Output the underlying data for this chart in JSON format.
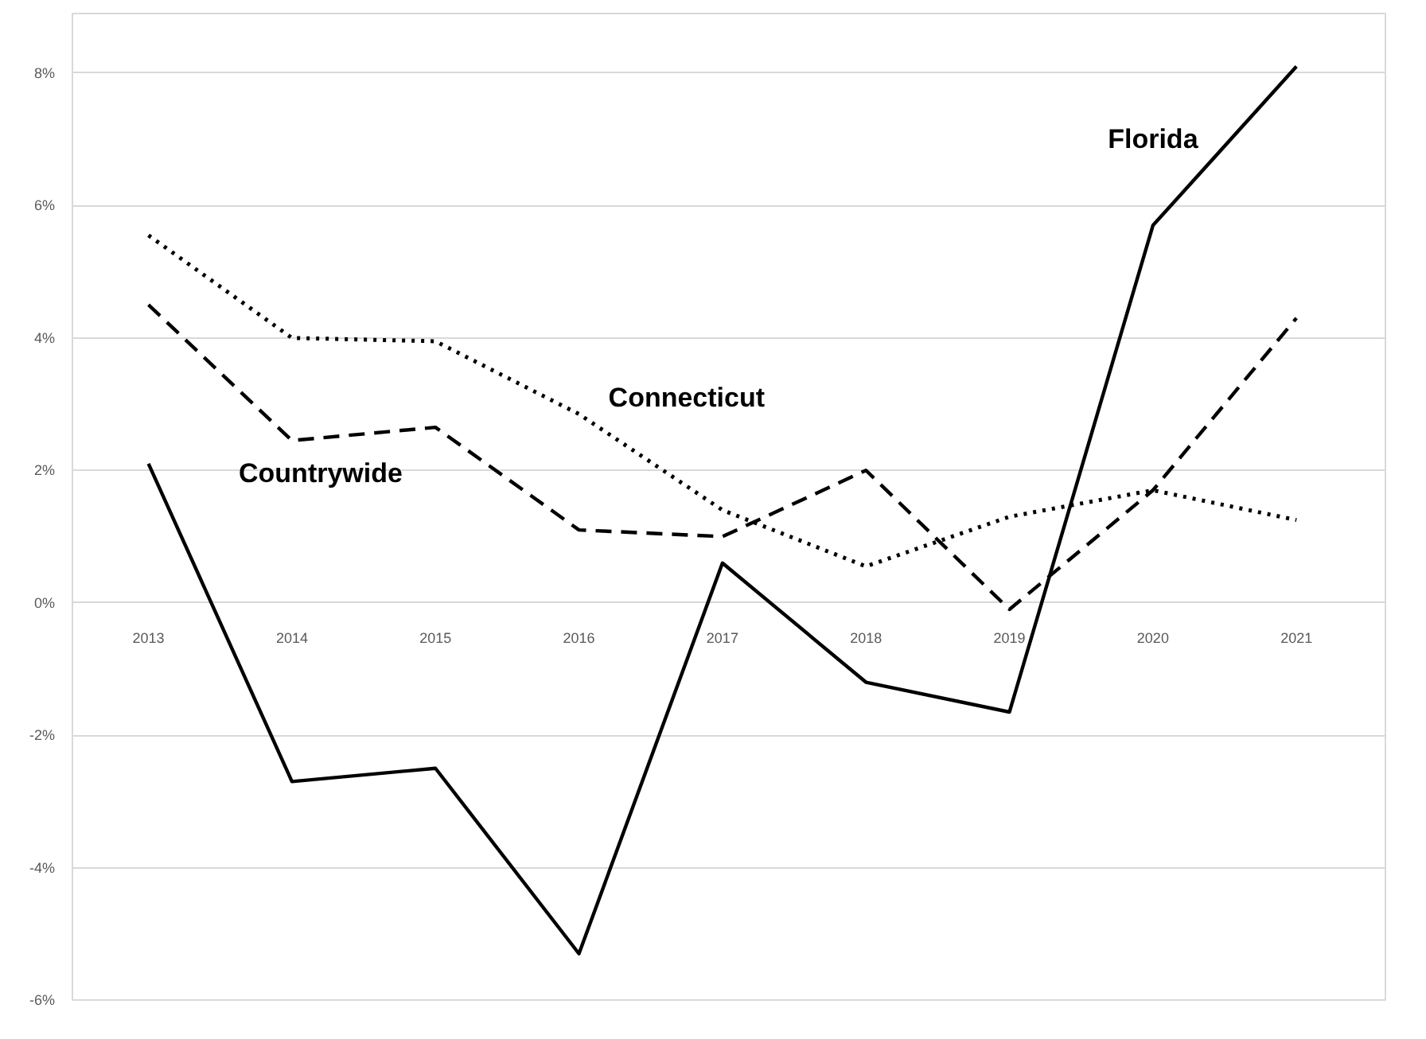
{
  "chart_data": {
    "type": "line",
    "categories": [
      "2013",
      "2014",
      "2015",
      "2016",
      "2017",
      "2018",
      "2019",
      "2020",
      "2021"
    ],
    "series": [
      {
        "name": "Florida",
        "color": "#000000",
        "line_style": "solid",
        "values": [
          2.1,
          -2.7,
          -2.5,
          -5.3,
          0.6,
          -1.2,
          -1.65,
          5.7,
          8.1
        ]
      },
      {
        "name": "Countrywide",
        "color": "#000000",
        "line_style": "dashed",
        "values": [
          4.5,
          2.45,
          2.65,
          1.1,
          1.0,
          2.0,
          -0.1,
          1.7,
          4.3
        ]
      },
      {
        "name": "Connecticut",
        "color": "#000000",
        "line_style": "dotted",
        "values": [
          5.55,
          4.0,
          3.95,
          2.85,
          1.4,
          0.55,
          1.3,
          1.7,
          1.25
        ]
      }
    ],
    "ylim": [
      -6,
      8.9
    ],
    "yticks": [
      {
        "value": -6,
        "label": "-6%"
      },
      {
        "value": -4,
        "label": "-4%"
      },
      {
        "value": -2,
        "label": "-2%"
      },
      {
        "value": 0,
        "label": "0%"
      },
      {
        "value": 2,
        "label": "2%"
      },
      {
        "value": 4,
        "label": "4%"
      },
      {
        "value": 6,
        "label": "6%"
      },
      {
        "value": 8,
        "label": "8%"
      }
    ],
    "grid": "y",
    "marker": "none"
  }
}
